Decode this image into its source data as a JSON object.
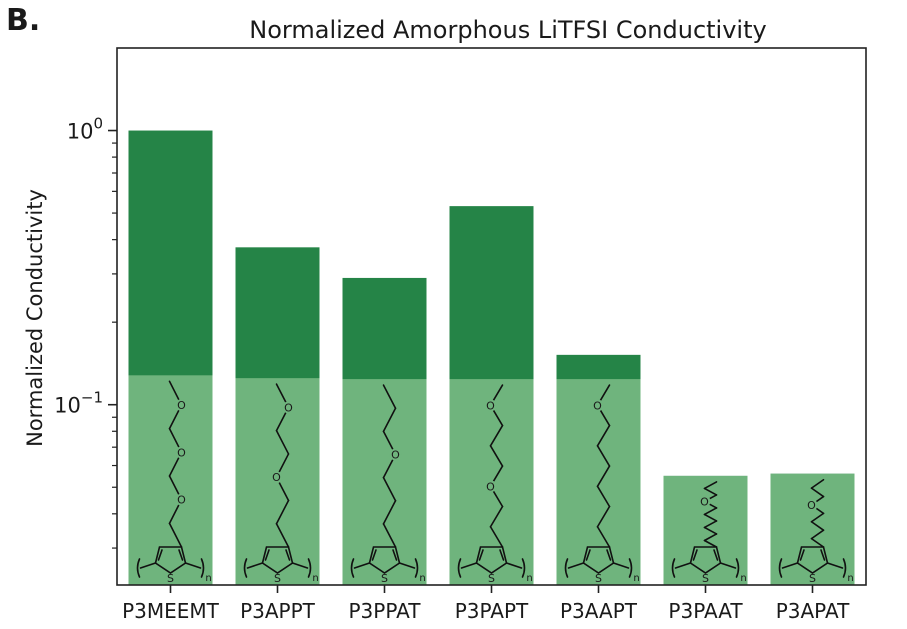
{
  "panel_label": "B.",
  "colors": {
    "bar_dark": "#258447",
    "bar_light": "#6fb47d",
    "axis": "#222222",
    "structure_line": "#111111"
  },
  "chart_data": {
    "type": "bar",
    "title": "Normalized Amorphous LiTFSI Conductivity",
    "xlabel": "",
    "ylabel": "Normalized Conductivity",
    "yscale": "log",
    "ylim": [
      0.022,
      2.0
    ],
    "yticks": [
      {
        "value": 1,
        "base": "10",
        "exp": "0"
      },
      {
        "value": 0.1,
        "base": "10",
        "exp": "−1"
      }
    ],
    "categories": [
      "P3MEEMT",
      "P3APPT",
      "P3PPAT",
      "P3PAPT",
      "P3AAPT",
      "P3PAAT",
      "P3APAT"
    ],
    "series": [
      {
        "role": "total",
        "values": [
          1.0,
          0.375,
          0.29,
          0.53,
          0.152,
          0.055,
          0.056
        ]
      },
      {
        "role": "overlay",
        "values": [
          0.128,
          0.125,
          0.124,
          0.124,
          0.124,
          0.055,
          0.056
        ]
      }
    ],
    "structure_labels": {
      "sulfur": "S",
      "repeat": "n",
      "oxygen": "O"
    },
    "side_chains": [
      {
        "segments": 7,
        "oxygens": [
          1,
          3,
          5
        ]
      },
      {
        "segments": 7,
        "oxygens": [
          1,
          4
        ]
      },
      {
        "segments": 7,
        "oxygens": [
          3
        ]
      },
      {
        "segments": 8,
        "oxygens": [
          1,
          5
        ]
      },
      {
        "segments": 8,
        "oxygens": [
          1
        ]
      },
      {
        "segments": 10,
        "oxygens": [
          3
        ]
      },
      {
        "segments": 8,
        "oxygens": [
          3
        ]
      }
    ],
    "grid": false,
    "legend": "none"
  }
}
